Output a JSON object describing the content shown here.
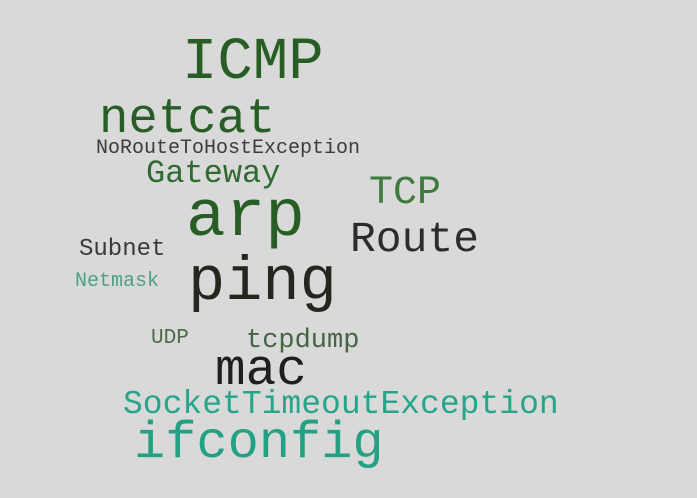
{
  "background_color": "#d9d9d9",
  "words": {
    "icmp": {
      "text": "ICMP",
      "color": "#285e25"
    },
    "netcat": {
      "text": "netcat",
      "color": "#285e25"
    },
    "noroute": {
      "text": "NoRouteToHostException",
      "color": "#3c3c3c"
    },
    "gateway": {
      "text": "Gateway",
      "color": "#2f6a32"
    },
    "tcp": {
      "text": "TCP",
      "color": "#3e7a3c"
    },
    "arp": {
      "text": "arp",
      "color": "#285e25"
    },
    "route": {
      "text": "Route",
      "color": "#2c2c2c"
    },
    "subnet": {
      "text": "Subnet",
      "color": "#3a3a3a"
    },
    "ping": {
      "text": "ping",
      "color": "#262620"
    },
    "netmask": {
      "text": "Netmask",
      "color": "#4fa07f"
    },
    "udp": {
      "text": "UDP",
      "color": "#4e6b4c"
    },
    "tcpdump": {
      "text": "tcpdump",
      "color": "#476345"
    },
    "mac": {
      "text": "mac",
      "color": "#1f1f1f"
    },
    "socket": {
      "text": "SocketTimeoutException",
      "color": "#26a58a"
    },
    "ifconfig": {
      "text": "ifconfig",
      "color": "#22a183"
    }
  }
}
